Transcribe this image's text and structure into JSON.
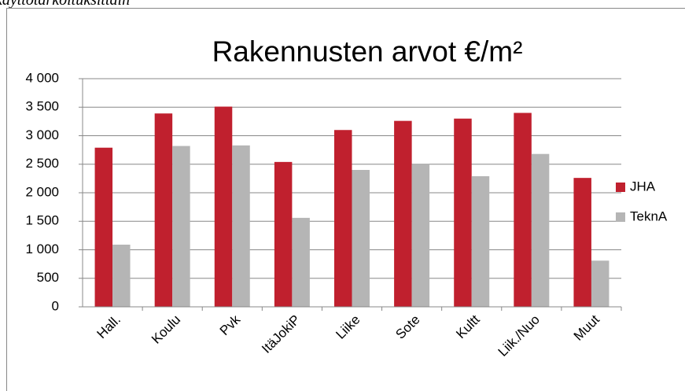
{
  "caption": "käyttötarkoituksittain",
  "chart_data": {
    "type": "bar",
    "title": "Rakennusten arvot €/m²",
    "categories": [
      "Hall.",
      "Koulu",
      "Pvk",
      "ItäJokiP",
      "Liike",
      "Sote",
      "Kultt",
      "Liik./Nuo",
      "Muut"
    ],
    "series": [
      {
        "name": "JHA",
        "color": "#c0202e",
        "values": [
          2790,
          3390,
          3510,
          2540,
          3100,
          3260,
          3300,
          3400,
          2260
        ]
      },
      {
        "name": "TeknA",
        "color": "#b5b5b5",
        "values": [
          1090,
          2820,
          2830,
          1560,
          2400,
          2500,
          2290,
          2680,
          810
        ]
      }
    ],
    "ylim": [
      0,
      4000
    ],
    "yticks": [
      0,
      500,
      {
        "value": 1000,
        "label": "1 000"
      },
      {
        "value": 1500,
        "label": "1 500"
      },
      {
        "value": 2000,
        "label": "2 000"
      },
      {
        "value": 2500,
        "label": "2 500"
      },
      {
        "value": 3000,
        "label": "3 000"
      },
      {
        "value": 3500,
        "label": "3 500"
      },
      {
        "value": 4000,
        "label": "4 000"
      }
    ],
    "grid": true,
    "legend": "right"
  }
}
